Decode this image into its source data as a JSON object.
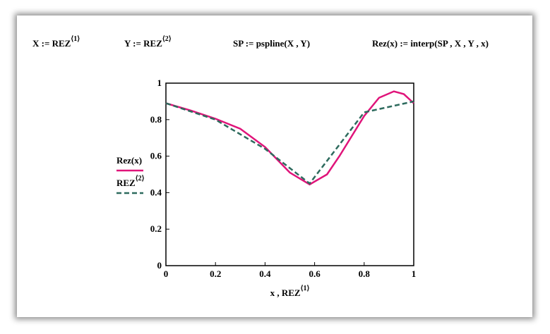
{
  "equations": [
    {
      "text": "X := REZ",
      "sup": "⟨1⟩"
    },
    {
      "text": "Y := REZ",
      "sup": "⟨2⟩"
    },
    {
      "text": "SP := pspline(X , Y)"
    },
    {
      "text": "Rez(x) := interp(SP , X , Y , x)"
    }
  ],
  "chart_data": {
    "type": "line",
    "xlabel": "x , REZ",
    "xlabel_sup": "⟨1⟩",
    "xlim": [
      0,
      1
    ],
    "ylim": [
      0,
      1
    ],
    "xticks": [
      0,
      0.2,
      0.4,
      0.6,
      0.8,
      1
    ],
    "yticks": [
      0,
      0.2,
      0.4,
      0.6,
      0.8,
      1
    ],
    "grid": false,
    "series": [
      {
        "name": "Rez(x)",
        "color": "#e0147a",
        "dash": false,
        "x": [
          0,
          0.1,
          0.2,
          0.3,
          0.4,
          0.5,
          0.58,
          0.65,
          0.7,
          0.8,
          0.86,
          0.92,
          0.96,
          1
        ],
        "values": [
          0.89,
          0.85,
          0.805,
          0.75,
          0.65,
          0.51,
          0.445,
          0.5,
          0.6,
          0.82,
          0.92,
          0.955,
          0.94,
          0.89
        ]
      },
      {
        "name": "REZ",
        "name_sup": "⟨2⟩",
        "color": "#2e6b5e",
        "dash": true,
        "x": [
          0,
          0.2,
          0.4,
          0.58,
          0.8,
          1
        ],
        "values": [
          0.89,
          0.8,
          0.64,
          0.45,
          0.84,
          0.9
        ]
      }
    ]
  }
}
